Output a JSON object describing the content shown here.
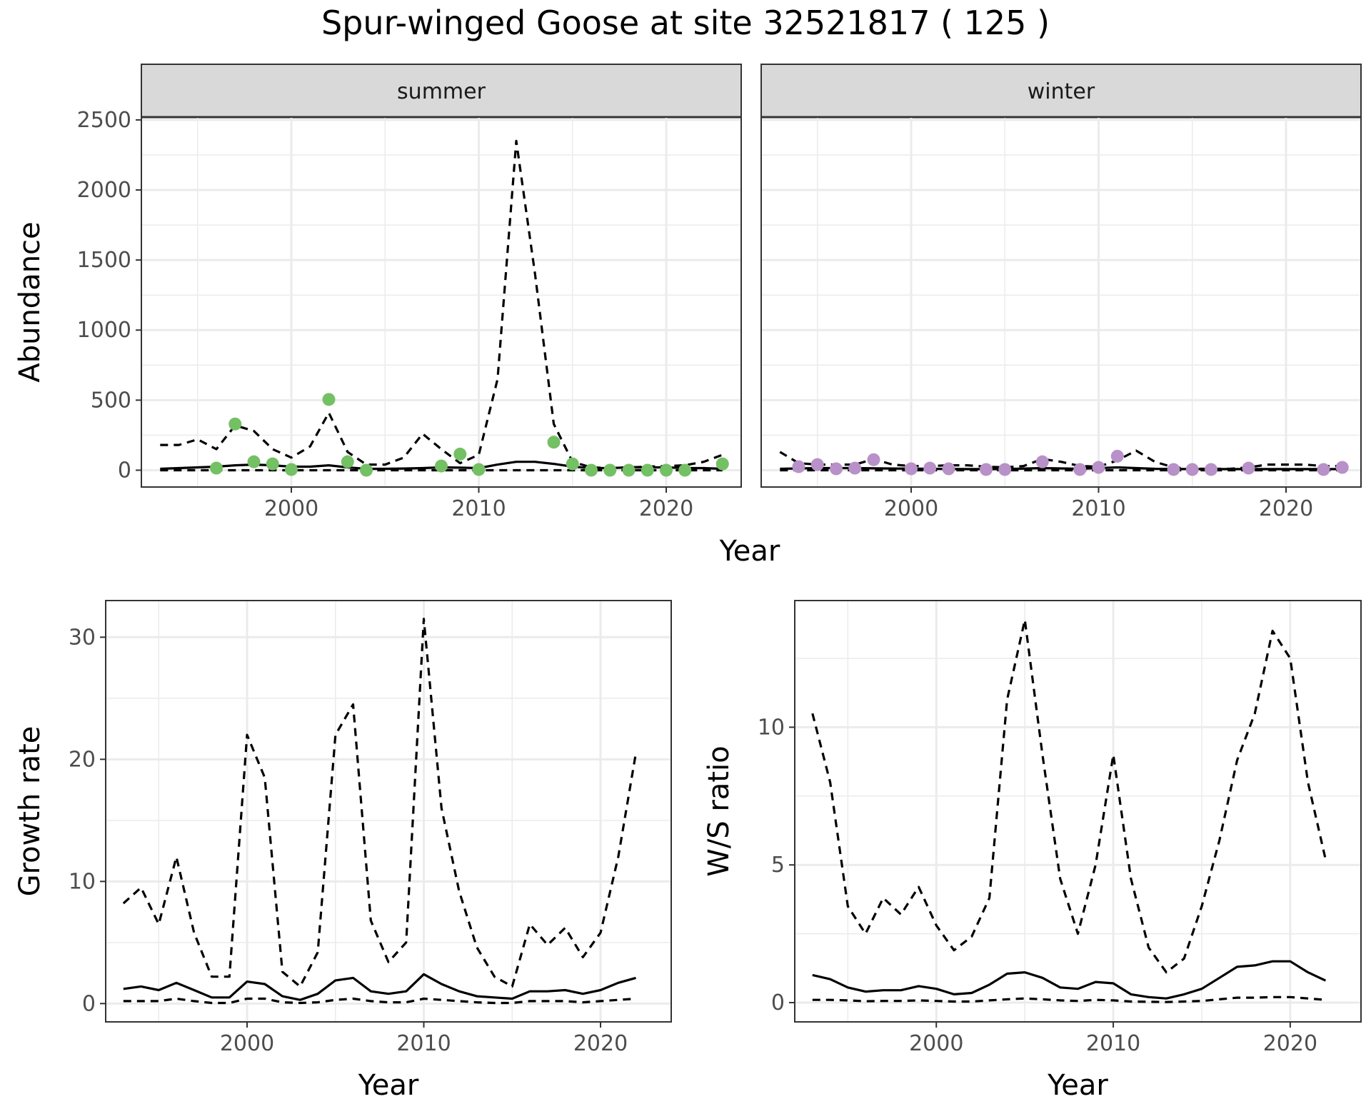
{
  "title": "Spur-winged Goose at site 32521817 ( 125 )",
  "colors": {
    "summer_points": "#74c064",
    "winter_points": "#b891c8",
    "line": "#000000",
    "strip_bg": "#d9d9d9",
    "grid": "#ebebeb"
  },
  "chart_data": [
    {
      "id": "abundance",
      "type": "line+scatter (faceted)",
      "ylabel": "Abundance",
      "xlabel": "Year",
      "xlim": [
        1992,
        2024
      ],
      "ylim": [
        -120,
        2520
      ],
      "x_ticks": [
        2000,
        2010,
        2020
      ],
      "y_ticks": [
        0,
        500,
        1000,
        1500,
        2000,
        2500
      ],
      "grid": true,
      "panels": [
        {
          "strip": "summer",
          "point_color": "#74c064",
          "mean": {
            "x": [
              1993,
              1994,
              1995,
              1996,
              1997,
              1998,
              1999,
              2000,
              2001,
              2002,
              2003,
              2004,
              2005,
              2006,
              2007,
              2008,
              2009,
              2010,
              2011,
              2012,
              2013,
              2014,
              2015,
              2016,
              2017,
              2018,
              2019,
              2020,
              2021,
              2022,
              2023
            ],
            "y": [
              10,
              15,
              20,
              25,
              35,
              40,
              35,
              25,
              25,
              35,
              20,
              10,
              10,
              12,
              15,
              20,
              18,
              15,
              40,
              60,
              60,
              45,
              25,
              15,
              15,
              20,
              20,
              20,
              15,
              15,
              10
            ]
          },
          "upper": {
            "x": [
              1993,
              1994,
              1995,
              1996,
              1997,
              1998,
              1999,
              2000,
              2001,
              2002,
              2003,
              2004,
              2005,
              2006,
              2007,
              2008,
              2009,
              2010,
              2011,
              2012,
              2013,
              2014,
              2015,
              2016,
              2017,
              2018,
              2019,
              2020,
              2021,
              2022,
              2023
            ],
            "y": [
              180,
              180,
              220,
              150,
              320,
              280,
              150,
              90,
              170,
              410,
              130,
              40,
              40,
              90,
              260,
              150,
              50,
              110,
              650,
              2350,
              1400,
              330,
              60,
              20,
              15,
              20,
              25,
              30,
              35,
              60,
              110
            ]
          },
          "lower": {
            "x": [
              1993,
              2000,
              2010,
              2020,
              2023
            ],
            "y": [
              0,
              0,
              0,
              0,
              0
            ]
          },
          "points": {
            "x": [
              1996,
              1997,
              1998,
              1999,
              2000,
              2002,
              2003,
              2004,
              2008,
              2009,
              2010,
              2014,
              2015,
              2016,
              2017,
              2018,
              2019,
              2020,
              2021,
              2023
            ],
            "y": [
              15,
              330,
              60,
              45,
              5,
              505,
              60,
              0,
              30,
              115,
              5,
              200,
              45,
              0,
              0,
              0,
              0,
              0,
              0,
              45
            ]
          }
        },
        {
          "strip": "winter",
          "point_color": "#b891c8",
          "mean": {
            "x": [
              1993,
              1995,
              1997,
              1999,
              2001,
              2003,
              2005,
              2007,
              2009,
              2011,
              2013,
              2015,
              2017,
              2019,
              2021,
              2023
            ],
            "y": [
              10,
              15,
              15,
              12,
              10,
              8,
              8,
              15,
              10,
              20,
              10,
              8,
              8,
              8,
              8,
              8
            ]
          },
          "upper": {
            "x": [
              1993,
              1994,
              1995,
              1996,
              1997,
              1998,
              1999,
              2000,
              2001,
              2002,
              2003,
              2004,
              2005,
              2006,
              2007,
              2008,
              2009,
              2010,
              2011,
              2012,
              2013,
              2014,
              2015,
              2016,
              2017,
              2018,
              2019,
              2020,
              2021,
              2022,
              2023
            ],
            "y": [
              130,
              50,
              40,
              40,
              40,
              80,
              40,
              30,
              30,
              35,
              35,
              25,
              20,
              30,
              80,
              60,
              30,
              25,
              70,
              140,
              60,
              20,
              10,
              10,
              10,
              20,
              40,
              40,
              40,
              30,
              30
            ]
          },
          "lower": {
            "x": [
              1993,
              2000,
              2010,
              2020,
              2023
            ],
            "y": [
              0,
              0,
              0,
              0,
              0
            ]
          },
          "points": {
            "x": [
              1994,
              1995,
              1996,
              1997,
              1998,
              2000,
              2001,
              2002,
              2004,
              2005,
              2007,
              2009,
              2010,
              2011,
              2014,
              2015,
              2016,
              2018,
              2022,
              2023
            ],
            "y": [
              25,
              40,
              10,
              15,
              75,
              10,
              15,
              10,
              5,
              5,
              60,
              5,
              20,
              100,
              5,
              5,
              5,
              15,
              5,
              20
            ]
          }
        }
      ]
    },
    {
      "id": "growth",
      "type": "line",
      "ylabel": "Growth rate",
      "xlabel": "Year",
      "xlim": [
        1992,
        2024
      ],
      "ylim": [
        -1.5,
        33
      ],
      "x_ticks": [
        2000,
        2010,
        2020
      ],
      "y_ticks": [
        0,
        10,
        20,
        30
      ],
      "grid": true,
      "mean": {
        "x": [
          1993,
          1994,
          1995,
          1996,
          1997,
          1998,
          1999,
          2000,
          2001,
          2002,
          2003,
          2004,
          2005,
          2006,
          2007,
          2008,
          2009,
          2010,
          2011,
          2012,
          2013,
          2014,
          2015,
          2016,
          2017,
          2018,
          2019,
          2020,
          2021,
          2022
        ],
        "y": [
          1.2,
          1.4,
          1.1,
          1.7,
          1.1,
          0.5,
          0.5,
          1.8,
          1.6,
          0.6,
          0.3,
          0.8,
          1.9,
          2.1,
          1.0,
          0.8,
          1.0,
          2.4,
          1.6,
          1.0,
          0.6,
          0.5,
          0.4,
          1.0,
          1.0,
          1.1,
          0.8,
          1.1,
          1.7,
          2.1
        ]
      },
      "upper": {
        "x": [
          1993,
          1994,
          1995,
          1996,
          1997,
          1998,
          1999,
          2000,
          2001,
          2002,
          2003,
          2004,
          2005,
          2006,
          2007,
          2008,
          2009,
          2010,
          2011,
          2012,
          2013,
          2014,
          2015,
          2016,
          2017,
          2018,
          2019,
          2020,
          2021,
          2022
        ],
        "y": [
          8.2,
          9.5,
          6.5,
          12,
          5.8,
          2.2,
          2.2,
          22,
          18.5,
          2.6,
          1.4,
          4.2,
          22,
          24.5,
          6.8,
          3.4,
          5.0,
          31.5,
          16,
          9.2,
          4.6,
          2.2,
          1.4,
          6.5,
          4.8,
          6.2,
          3.8,
          5.8,
          12,
          20.5
        ]
      },
      "lower": {
        "x": [
          1993,
          1994,
          1995,
          1996,
          1997,
          1998,
          1999,
          2000,
          2001,
          2002,
          2003,
          2004,
          2005,
          2006,
          2007,
          2008,
          2009,
          2010,
          2011,
          2012,
          2013,
          2014,
          2015,
          2016,
          2017,
          2018,
          2019,
          2020,
          2021,
          2022
        ],
        "y": [
          0.2,
          0.2,
          0.2,
          0.4,
          0.2,
          0.05,
          0.05,
          0.4,
          0.4,
          0.1,
          0.05,
          0.1,
          0.3,
          0.4,
          0.2,
          0.1,
          0.1,
          0.4,
          0.3,
          0.2,
          0.1,
          0.05,
          0.05,
          0.2,
          0.2,
          0.2,
          0.1,
          0.2,
          0.3,
          0.4
        ]
      }
    },
    {
      "id": "ws_ratio",
      "type": "line",
      "ylabel": "W/S ratio",
      "xlabel": "Year",
      "xlim": [
        1992,
        2024
      ],
      "ylim": [
        -0.7,
        14.6
      ],
      "x_ticks": [
        2000,
        2010,
        2020
      ],
      "y_ticks": [
        0,
        5,
        10
      ],
      "grid": true,
      "mean": {
        "x": [
          1993,
          1994,
          1995,
          1996,
          1997,
          1998,
          1999,
          2000,
          2001,
          2002,
          2003,
          2004,
          2005,
          2006,
          2007,
          2008,
          2009,
          2010,
          2011,
          2012,
          2013,
          2014,
          2015,
          2016,
          2017,
          2018,
          2019,
          2020,
          2021,
          2022
        ],
        "y": [
          1.0,
          0.85,
          0.55,
          0.4,
          0.45,
          0.45,
          0.6,
          0.5,
          0.3,
          0.35,
          0.65,
          1.05,
          1.1,
          0.9,
          0.55,
          0.5,
          0.75,
          0.7,
          0.3,
          0.2,
          0.15,
          0.3,
          0.5,
          0.9,
          1.3,
          1.35,
          1.5,
          1.5,
          1.1,
          0.8
        ]
      },
      "upper": {
        "x": [
          1993,
          1994,
          1995,
          1996,
          1997,
          1998,
          1999,
          2000,
          2001,
          2002,
          2003,
          2004,
          2005,
          2006,
          2007,
          2008,
          2009,
          2010,
          2011,
          2012,
          2013,
          2014,
          2015,
          2016,
          2017,
          2018,
          2019,
          2020,
          2021,
          2022
        ],
        "y": [
          10.5,
          8,
          3.5,
          2.5,
          3.8,
          3.2,
          4.2,
          2.8,
          1.9,
          2.4,
          3.8,
          11,
          13.9,
          9,
          4.5,
          2.5,
          5,
          9,
          4.5,
          2,
          1.1,
          1.6,
          3.5,
          5.9,
          8.8,
          10.5,
          13.5,
          12.5,
          8,
          5.2
        ]
      },
      "lower": {
        "x": [
          1993,
          1994,
          1995,
          1996,
          1997,
          1998,
          1999,
          2000,
          2001,
          2002,
          2003,
          2004,
          2005,
          2006,
          2007,
          2008,
          2009,
          2010,
          2011,
          2012,
          2013,
          2014,
          2015,
          2016,
          2017,
          2018,
          2019,
          2020,
          2021,
          2022
        ],
        "y": [
          0.1,
          0.1,
          0.08,
          0.05,
          0.06,
          0.06,
          0.08,
          0.06,
          0.04,
          0.04,
          0.08,
          0.12,
          0.15,
          0.12,
          0.08,
          0.06,
          0.1,
          0.08,
          0.04,
          0.03,
          0.02,
          0.04,
          0.06,
          0.12,
          0.18,
          0.18,
          0.2,
          0.2,
          0.15,
          0.1
        ]
      }
    }
  ]
}
